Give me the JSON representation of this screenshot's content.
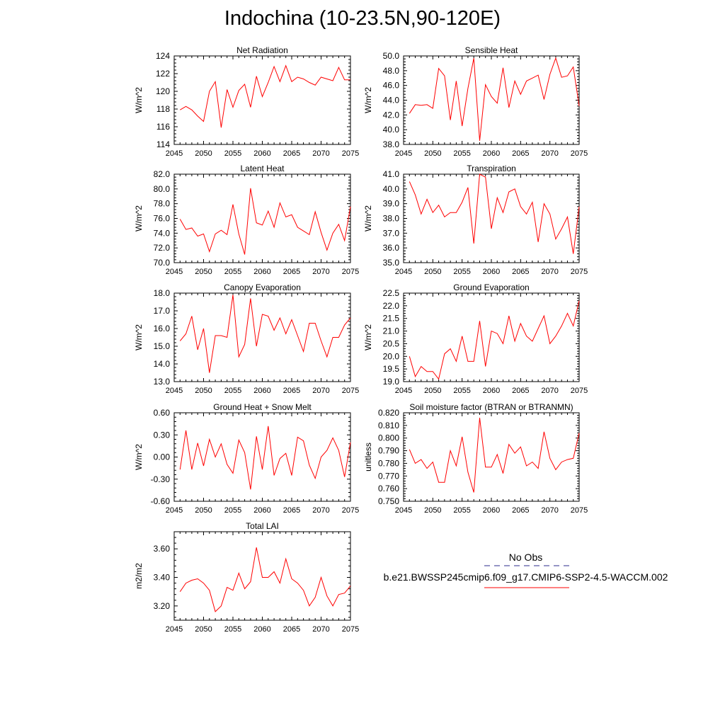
{
  "title": "Indochina (10-23.5N,90-120E)",
  "legend": {
    "obs_label": "No Obs",
    "obs_color": "#2b2b8c",
    "model_label": "b.e21.BWSSP245cmip6.f09_g17.CMIP6-SSP2-4.5-WACCM.002",
    "model_color": "#ff0000"
  },
  "chart_data": [
    {
      "type": "line",
      "title": "Net Radiation",
      "xlabel": "",
      "ylabel": "W/m^2",
      "xlim": [
        2045,
        2075
      ],
      "ylim": [
        114,
        124
      ],
      "xticks": [
        2045,
        2050,
        2055,
        2060,
        2065,
        2070,
        2075
      ],
      "yticks": [
        114,
        116,
        118,
        120,
        122,
        124
      ],
      "ytick_labels": [
        "114",
        "116",
        "118",
        "120",
        "122",
        "124"
      ],
      "series": [
        {
          "x": [
            2046,
            2047,
            2048,
            2049,
            2050,
            2051,
            2052,
            2053,
            2054,
            2055,
            2056,
            2057,
            2058,
            2059,
            2060,
            2061,
            2062,
            2063,
            2064,
            2065,
            2066,
            2067,
            2068,
            2069,
            2070,
            2071,
            2072,
            2073,
            2074,
            2075
          ],
          "values": [
            117.9,
            118.3,
            117.9,
            117.2,
            116.6,
            120.0,
            121.1,
            115.9,
            120.2,
            118.2,
            120.1,
            120.8,
            118.2,
            121.7,
            119.4,
            121.0,
            122.8,
            121.1,
            122.9,
            121.1,
            121.6,
            121.4,
            121.0,
            120.7,
            121.6,
            121.4,
            121.2,
            122.7,
            121.3,
            121.3
          ],
          "color": "#ff0000"
        }
      ]
    },
    {
      "type": "line",
      "title": "Sensible Heat",
      "xlabel": "",
      "ylabel": "W/m^2",
      "xlim": [
        2045,
        2075
      ],
      "ylim": [
        38,
        50
      ],
      "xticks": [
        2045,
        2050,
        2055,
        2060,
        2065,
        2070,
        2075
      ],
      "yticks": [
        38,
        40,
        42,
        44,
        46,
        48,
        50
      ],
      "ytick_labels": [
        "38.0",
        "40.0",
        "42.0",
        "44.0",
        "46.0",
        "48.0",
        "50.0"
      ],
      "series": [
        {
          "x": [
            2046,
            2047,
            2048,
            2049,
            2050,
            2051,
            2052,
            2053,
            2054,
            2055,
            2056,
            2057,
            2058,
            2059,
            2060,
            2061,
            2062,
            2063,
            2064,
            2065,
            2066,
            2067,
            2068,
            2069,
            2070,
            2071,
            2072,
            2073,
            2074,
            2075
          ],
          "values": [
            42.2,
            43.4,
            43.3,
            43.4,
            42.9,
            48.3,
            47.3,
            41.3,
            46.6,
            40.5,
            45.6,
            49.7,
            38.5,
            46.1,
            44.5,
            43.6,
            48.4,
            43.0,
            46.6,
            44.8,
            46.6,
            47.0,
            47.4,
            44.1,
            47.5,
            49.7,
            47.1,
            47.3,
            48.5,
            43.2
          ],
          "color": "#ff0000"
        }
      ]
    },
    {
      "type": "line",
      "title": "Latent Heat",
      "xlabel": "",
      "ylabel": "W/m^2",
      "xlim": [
        2045,
        2075
      ],
      "ylim": [
        70,
        82
      ],
      "xticks": [
        2045,
        2050,
        2055,
        2060,
        2065,
        2070,
        2075
      ],
      "yticks": [
        70,
        72,
        74,
        76,
        78,
        80,
        82
      ],
      "ytick_labels": [
        "70.0",
        "72.0",
        "74.0",
        "76.0",
        "78.0",
        "80.0",
        "82.0"
      ],
      "series": [
        {
          "x": [
            2046,
            2047,
            2048,
            2049,
            2050,
            2051,
            2052,
            2053,
            2054,
            2055,
            2056,
            2057,
            2058,
            2059,
            2060,
            2061,
            2062,
            2063,
            2064,
            2065,
            2066,
            2067,
            2068,
            2069,
            2070,
            2071,
            2072,
            2073,
            2074,
            2075
          ],
          "values": [
            75.9,
            74.5,
            74.7,
            73.6,
            73.9,
            71.5,
            73.9,
            74.4,
            73.8,
            77.9,
            73.9,
            71.1,
            80.1,
            75.4,
            75.1,
            77.0,
            74.8,
            78.1,
            76.2,
            76.5,
            74.8,
            74.3,
            73.8,
            76.9,
            74.1,
            71.7,
            74.0,
            75.2,
            73.0,
            77.6
          ],
          "color": "#ff0000"
        }
      ]
    },
    {
      "type": "line",
      "title": "Transpiration",
      "xlabel": "",
      "ylabel": "W/m^2",
      "xlim": [
        2045,
        2075
      ],
      "ylim": [
        35,
        41
      ],
      "xticks": [
        2045,
        2050,
        2055,
        2060,
        2065,
        2070,
        2075
      ],
      "yticks": [
        35,
        36,
        37,
        38,
        39,
        40,
        41
      ],
      "ytick_labels": [
        "35.0",
        "36.0",
        "37.0",
        "38.0",
        "39.0",
        "40.0",
        "41.0"
      ],
      "series": [
        {
          "x": [
            2046,
            2047,
            2048,
            2049,
            2050,
            2051,
            2052,
            2053,
            2054,
            2055,
            2056,
            2057,
            2058,
            2059,
            2060,
            2061,
            2062,
            2063,
            2064,
            2065,
            2066,
            2067,
            2068,
            2069,
            2070,
            2071,
            2072,
            2073,
            2074,
            2075
          ],
          "values": [
            40.5,
            39.6,
            38.3,
            39.3,
            38.4,
            38.9,
            38.1,
            38.4,
            38.4,
            39.1,
            40.1,
            36.3,
            41.0,
            40.8,
            37.3,
            39.4,
            38.4,
            39.8,
            40.0,
            38.8,
            38.3,
            39.1,
            36.4,
            39.0,
            38.3,
            36.6,
            37.3,
            38.1,
            35.6,
            38.8
          ],
          "color": "#ff0000"
        }
      ]
    },
    {
      "type": "line",
      "title": "Canopy Evaporation",
      "xlabel": "",
      "ylabel": "W/m^2",
      "xlim": [
        2045,
        2075
      ],
      "ylim": [
        13,
        18
      ],
      "xticks": [
        2045,
        2050,
        2055,
        2060,
        2065,
        2070,
        2075
      ],
      "yticks": [
        13,
        14,
        15,
        16,
        17,
        18
      ],
      "ytick_labels": [
        "13.0",
        "14.0",
        "15.0",
        "16.0",
        "17.0",
        "18.0"
      ],
      "series": [
        {
          "x": [
            2046,
            2047,
            2048,
            2049,
            2050,
            2051,
            2052,
            2053,
            2054,
            2055,
            2056,
            2057,
            2058,
            2059,
            2060,
            2061,
            2062,
            2063,
            2064,
            2065,
            2066,
            2067,
            2068,
            2069,
            2070,
            2071,
            2072,
            2073,
            2074,
            2075
          ],
          "values": [
            15.3,
            15.7,
            16.7,
            14.8,
            16.0,
            13.5,
            15.6,
            15.6,
            15.5,
            17.9,
            14.4,
            15.1,
            17.7,
            15.0,
            16.8,
            16.7,
            15.9,
            16.6,
            15.7,
            16.5,
            15.6,
            14.7,
            16.3,
            16.3,
            15.3,
            14.4,
            15.5,
            15.5,
            16.2,
            16.6
          ],
          "color": "#ff0000"
        }
      ]
    },
    {
      "type": "line",
      "title": "Ground Evaporation",
      "xlabel": "",
      "ylabel": "W/m^2",
      "xlim": [
        2045,
        2075
      ],
      "ylim": [
        19,
        22.5
      ],
      "xticks": [
        2045,
        2050,
        2055,
        2060,
        2065,
        2070,
        2075
      ],
      "yticks": [
        19,
        19.5,
        20,
        20.5,
        21,
        21.5,
        22,
        22.5
      ],
      "ytick_labels": [
        "19.0",
        "19.5",
        "20.0",
        "20.5",
        "21.0",
        "21.5",
        "22.0",
        "22.5"
      ],
      "series": [
        {
          "x": [
            2046,
            2047,
            2048,
            2049,
            2050,
            2051,
            2052,
            2053,
            2054,
            2055,
            2056,
            2057,
            2058,
            2059,
            2060,
            2061,
            2062,
            2063,
            2064,
            2065,
            2066,
            2067,
            2068,
            2069,
            2070,
            2071,
            2072,
            2073,
            2074,
            2075
          ],
          "values": [
            20.0,
            19.2,
            19.6,
            19.4,
            19.4,
            19.1,
            20.1,
            20.3,
            19.8,
            20.8,
            19.8,
            19.8,
            21.4,
            19.6,
            21.0,
            20.9,
            20.5,
            21.6,
            20.6,
            21.3,
            20.8,
            20.6,
            21.1,
            21.6,
            20.5,
            20.8,
            21.2,
            21.7,
            21.2,
            22.2
          ],
          "color": "#ff0000"
        }
      ]
    },
    {
      "type": "line",
      "title": "Ground Heat + Snow Melt",
      "xlabel": "",
      "ylabel": "W/m^2",
      "xlim": [
        2045,
        2075
      ],
      "ylim": [
        -0.6,
        0.6
      ],
      "xticks": [
        2045,
        2050,
        2055,
        2060,
        2065,
        2070,
        2075
      ],
      "yticks": [
        -0.6,
        -0.3,
        0,
        0.3,
        0.6
      ],
      "ytick_labels": [
        "-0.60",
        "-0.30",
        "0.00",
        "0.30",
        "0.60"
      ],
      "series": [
        {
          "x": [
            2046,
            2047,
            2048,
            2049,
            2050,
            2051,
            2052,
            2053,
            2054,
            2055,
            2056,
            2057,
            2058,
            2059,
            2060,
            2061,
            2062,
            2063,
            2064,
            2065,
            2066,
            2067,
            2068,
            2069,
            2070,
            2071,
            2072,
            2073,
            2074,
            2075
          ],
          "values": [
            -0.17,
            0.36,
            -0.17,
            0.19,
            -0.12,
            0.24,
            0.0,
            0.18,
            -0.1,
            -0.22,
            0.23,
            0.06,
            -0.44,
            0.28,
            -0.17,
            0.42,
            -0.25,
            -0.02,
            0.05,
            -0.25,
            0.27,
            0.22,
            -0.11,
            -0.29,
            0.0,
            0.09,
            0.26,
            0.09,
            -0.27,
            0.2
          ],
          "color": "#ff0000"
        }
      ]
    },
    {
      "type": "line",
      "title": "Soil moisture factor (BTRAN or BTRANMN)",
      "xlabel": "",
      "ylabel": "unitless",
      "xlim": [
        2045,
        2075
      ],
      "ylim": [
        0.75,
        0.82
      ],
      "xticks": [
        2045,
        2050,
        2055,
        2060,
        2065,
        2070,
        2075
      ],
      "yticks": [
        0.75,
        0.76,
        0.77,
        0.78,
        0.79,
        0.8,
        0.81,
        0.82
      ],
      "ytick_labels": [
        "0.750",
        "0.760",
        "0.770",
        "0.780",
        "0.790",
        "0.800",
        "0.810",
        "0.820"
      ],
      "series": [
        {
          "x": [
            2046,
            2047,
            2048,
            2049,
            2050,
            2051,
            2052,
            2053,
            2054,
            2055,
            2056,
            2057,
            2058,
            2059,
            2060,
            2061,
            2062,
            2063,
            2064,
            2065,
            2066,
            2067,
            2068,
            2069,
            2070,
            2071,
            2072,
            2073,
            2074,
            2075
          ],
          "values": [
            0.791,
            0.78,
            0.783,
            0.776,
            0.781,
            0.765,
            0.765,
            0.79,
            0.778,
            0.801,
            0.773,
            0.757,
            0.816,
            0.777,
            0.777,
            0.787,
            0.772,
            0.795,
            0.788,
            0.793,
            0.778,
            0.781,
            0.776,
            0.805,
            0.784,
            0.775,
            0.781,
            0.783,
            0.784,
            0.804
          ],
          "color": "#ff0000"
        }
      ]
    },
    {
      "type": "line",
      "title": "Total LAI",
      "xlabel": "",
      "ylabel": "m2/m2",
      "xlim": [
        2045,
        2075
      ],
      "ylim": [
        3.1,
        3.72
      ],
      "xticks": [
        2045,
        2050,
        2055,
        2060,
        2065,
        2070,
        2075
      ],
      "yticks": [
        3.2,
        3.4,
        3.6
      ],
      "ytick_labels": [
        "3.20",
        "3.40",
        "3.60"
      ],
      "series": [
        {
          "x": [
            2046,
            2047,
            2048,
            2049,
            2050,
            2051,
            2052,
            2053,
            2054,
            2055,
            2056,
            2057,
            2058,
            2059,
            2060,
            2061,
            2062,
            2063,
            2064,
            2065,
            2066,
            2067,
            2068,
            2069,
            2070,
            2071,
            2072,
            2073,
            2074,
            2075
          ],
          "values": [
            3.3,
            3.36,
            3.38,
            3.39,
            3.36,
            3.31,
            3.16,
            3.2,
            3.33,
            3.31,
            3.43,
            3.32,
            3.37,
            3.61,
            3.4,
            3.4,
            3.44,
            3.36,
            3.53,
            3.39,
            3.36,
            3.31,
            3.2,
            3.26,
            3.4,
            3.27,
            3.2,
            3.28,
            3.29,
            3.34
          ],
          "color": "#ff0000"
        }
      ]
    }
  ]
}
